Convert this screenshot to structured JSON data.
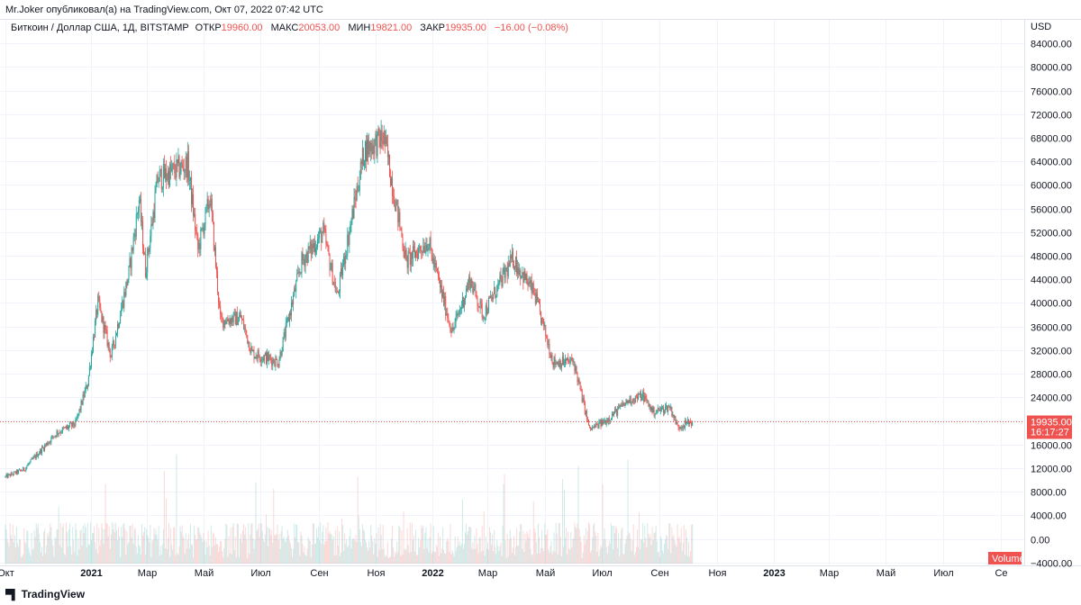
{
  "header": {
    "publisher": "Mr.Joker опубликовал(а) на TradingView.com, Окт 07, 2022 07:42 UTC"
  },
  "legend": {
    "symbol": "Биткоин / Доллар США, 1Д, BITSTAMP",
    "open_label": "ОТКР",
    "open_value": "19960.00",
    "high_label": "МАКС",
    "high_value": "20053.00",
    "low_label": "МИН",
    "low_value": "19821.00",
    "close_label": "ЗАКР",
    "close_value": "19935.00",
    "change": "−16.00 (−0.08%)"
  },
  "footer": {
    "brand": "TradingView"
  },
  "colors": {
    "up": "#26a69a",
    "down": "#ef5350",
    "grid": "#f0f3fa",
    "price_line": "#ef5350"
  },
  "chart_data": {
    "type": "candlestick",
    "currency": "USD",
    "interval": "1Д",
    "exchange": "BITSTAMP",
    "y_ticks": [
      84000,
      80000,
      76000,
      72000,
      68000,
      64000,
      60000,
      56000,
      52000,
      48000,
      44000,
      40000,
      36000,
      32000,
      28000,
      24000,
      20000,
      16000,
      12000,
      8000,
      4000,
      0,
      -4000
    ],
    "y_tick_labels": [
      "84000.00",
      "80000.00",
      "76000.00",
      "72000.00",
      "68000.00",
      "64000.00",
      "60000.00",
      "56000.00",
      "52000.00",
      "48000.00",
      "44000.00",
      "40000.00",
      "36000.00",
      "32000.00",
      "28000.00",
      "24000.00",
      "",
      "16000.00",
      "12000.00",
      "8000.00",
      "4000.00",
      "0.00",
      "−4000.00"
    ],
    "ylim": [
      -4500,
      88000
    ],
    "x_ticks": [
      {
        "date": "2020-10-01",
        "label": "Окт",
        "bold": false
      },
      {
        "date": "2021-01-01",
        "label": "2021",
        "bold": true
      },
      {
        "date": "2021-03-01",
        "label": "Мар",
        "bold": false
      },
      {
        "date": "2021-05-01",
        "label": "Май",
        "bold": false
      },
      {
        "date": "2021-07-01",
        "label": "Июл",
        "bold": false
      },
      {
        "date": "2021-09-01",
        "label": "Сен",
        "bold": false
      },
      {
        "date": "2021-11-01",
        "label": "Ноя",
        "bold": false
      },
      {
        "date": "2022-01-01",
        "label": "2022",
        "bold": true
      },
      {
        "date": "2022-03-01",
        "label": "Мар",
        "bold": false
      },
      {
        "date": "2022-05-01",
        "label": "Май",
        "bold": false
      },
      {
        "date": "2022-07-01",
        "label": "Июл",
        "bold": false
      },
      {
        "date": "2022-09-01",
        "label": "Сен",
        "bold": false
      },
      {
        "date": "2022-11-01",
        "label": "Ноя",
        "bold": false
      },
      {
        "date": "2023-01-01",
        "label": "2023",
        "bold": true
      },
      {
        "date": "2023-03-01",
        "label": "Мар",
        "bold": false
      },
      {
        "date": "2023-05-01",
        "label": "Май",
        "bold": false
      },
      {
        "date": "2023-07-01",
        "label": "Июл",
        "bold": false
      },
      {
        "date": "2023-09-01",
        "label": "Се",
        "bold": false
      }
    ],
    "last_price": 19935,
    "last_price_label": "19935.00",
    "countdown_label": "16:17:27",
    "volume_label": "Volume",
    "series": [
      {
        "date": "2020-10-01",
        "close": 10500
      },
      {
        "date": "2020-10-21",
        "close": 11800
      },
      {
        "date": "2020-11-05",
        "close": 14500
      },
      {
        "date": "2020-11-25",
        "close": 18000
      },
      {
        "date": "2020-12-15",
        "close": 19500
      },
      {
        "date": "2020-12-28",
        "close": 26500
      },
      {
        "date": "2021-01-08",
        "close": 40000
      },
      {
        "date": "2021-01-22",
        "close": 31000
      },
      {
        "date": "2021-02-10",
        "close": 45000
      },
      {
        "date": "2021-02-21",
        "close": 57500
      },
      {
        "date": "2021-02-28",
        "close": 45500
      },
      {
        "date": "2021-03-13",
        "close": 61000
      },
      {
        "date": "2021-04-14",
        "close": 63500
      },
      {
        "date": "2021-04-25",
        "close": 49000
      },
      {
        "date": "2021-05-08",
        "close": 58000
      },
      {
        "date": "2021-05-19",
        "close": 37000
      },
      {
        "date": "2021-06-10",
        "close": 37500
      },
      {
        "date": "2021-06-22",
        "close": 31500
      },
      {
        "date": "2021-07-20",
        "close": 30000
      },
      {
        "date": "2021-08-14",
        "close": 47000
      },
      {
        "date": "2021-09-06",
        "close": 52000
      },
      {
        "date": "2021-09-21",
        "close": 41000
      },
      {
        "date": "2021-10-20",
        "close": 66000
      },
      {
        "date": "2021-11-10",
        "close": 68000
      },
      {
        "date": "2021-12-04",
        "close": 47000
      },
      {
        "date": "2021-12-27",
        "close": 50500
      },
      {
        "date": "2022-01-22",
        "close": 35000
      },
      {
        "date": "2022-02-10",
        "close": 44000
      },
      {
        "date": "2022-02-24",
        "close": 38000
      },
      {
        "date": "2022-03-28",
        "close": 47500
      },
      {
        "date": "2022-04-20",
        "close": 41500
      },
      {
        "date": "2022-05-10",
        "close": 30000
      },
      {
        "date": "2022-06-01",
        "close": 30000
      },
      {
        "date": "2022-06-18",
        "close": 18500
      },
      {
        "date": "2022-07-05",
        "close": 20000
      },
      {
        "date": "2022-07-30",
        "close": 23500
      },
      {
        "date": "2022-08-14",
        "close": 24300
      },
      {
        "date": "2022-08-25",
        "close": 21500
      },
      {
        "date": "2022-09-12",
        "close": 22400
      },
      {
        "date": "2022-09-20",
        "close": 19000
      },
      {
        "date": "2022-10-06",
        "close": 19935
      }
    ]
  }
}
